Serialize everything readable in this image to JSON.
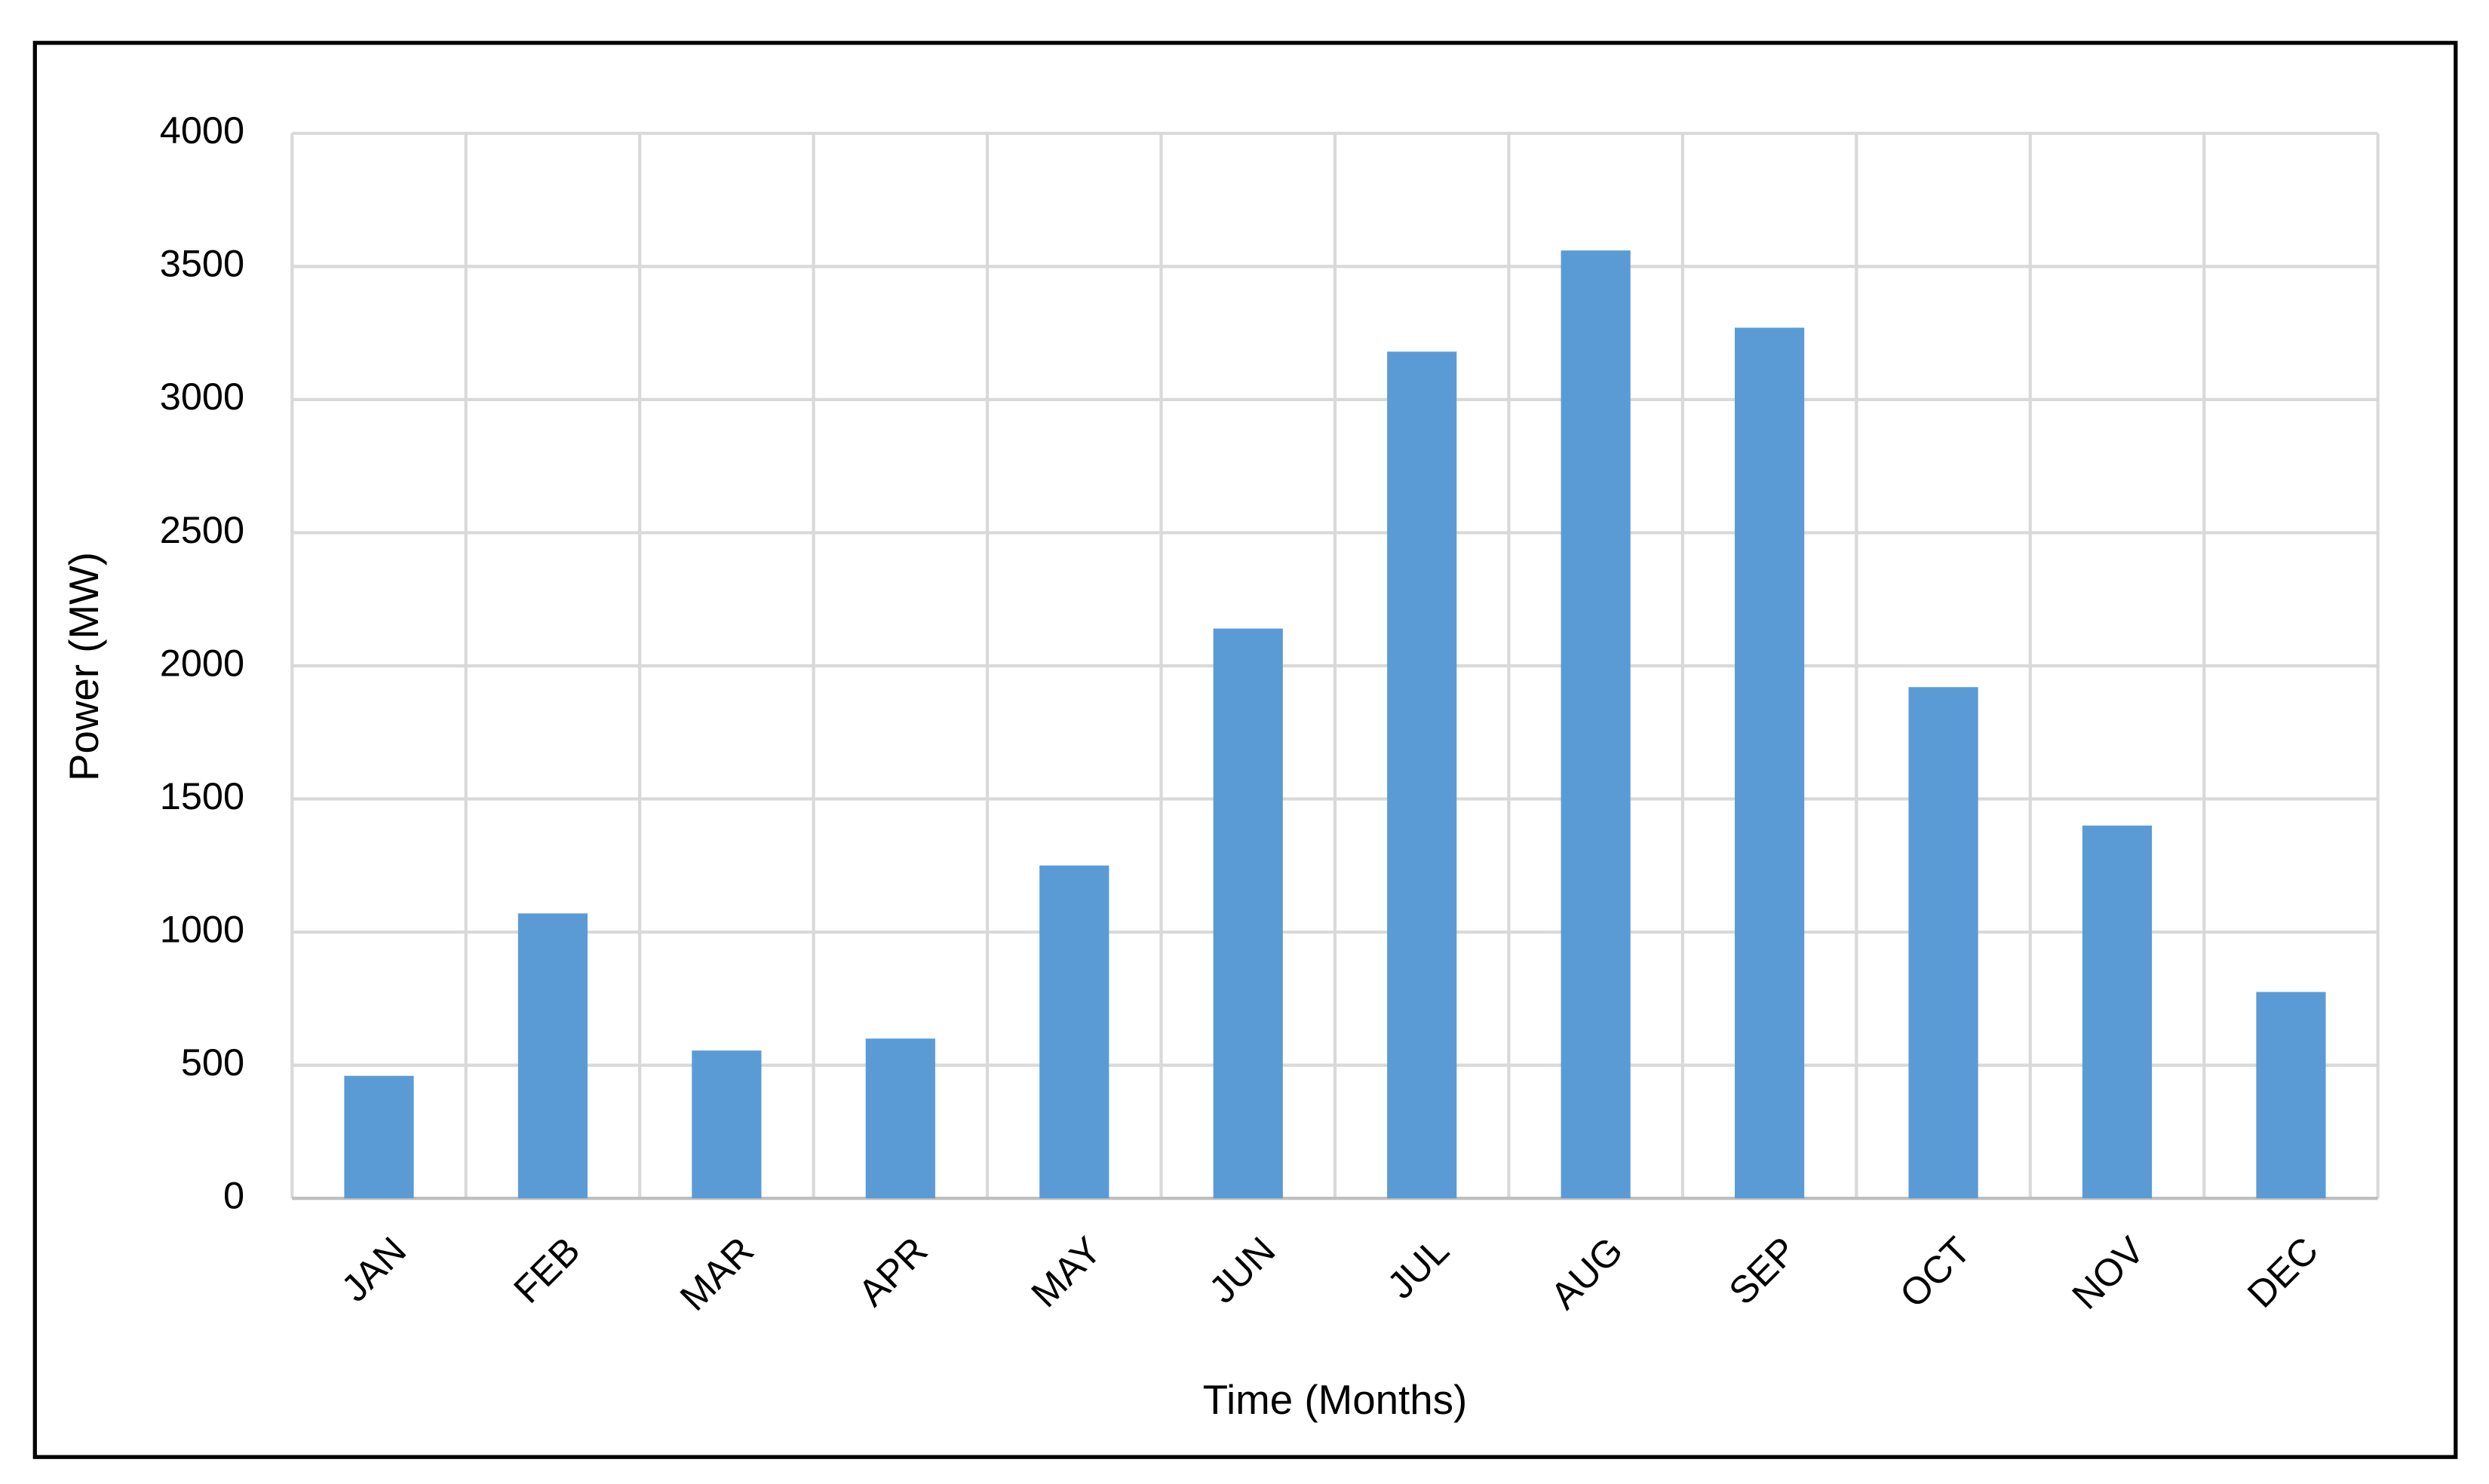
{
  "chart_data": {
    "type": "bar",
    "x_label": "Time (Months)",
    "y_label": "Power (MW)",
    "categories": [
      "JAN",
      "FEB",
      "MAR",
      "APR",
      "MAY",
      "JUN",
      "JUL",
      "AUG",
      "SEP",
      "OCT",
      "NOV",
      "DEC"
    ],
    "values": [
      460,
      1070,
      555,
      600,
      1250,
      2140,
      3180,
      3560,
      3270,
      1920,
      1400,
      775
    ],
    "color": "#5b9bd5",
    "ylim": [
      0,
      4000
    ],
    "yticks": [
      0,
      500,
      1000,
      1500,
      2000,
      2500,
      3000,
      3500,
      4000
    ],
    "grid": true
  }
}
